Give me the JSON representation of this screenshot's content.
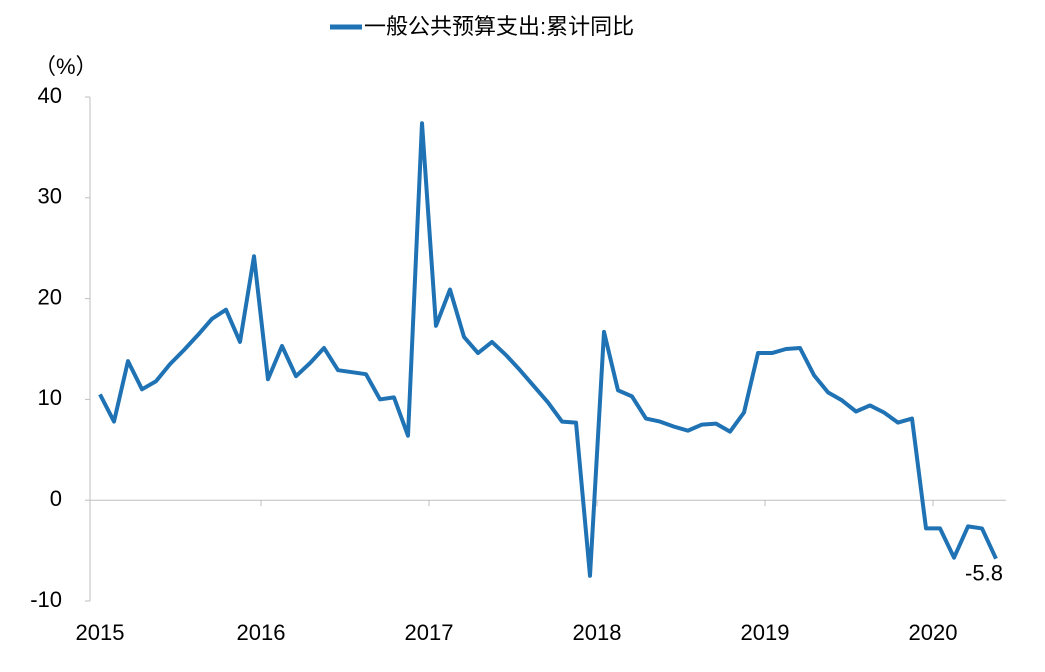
{
  "chart_data": {
    "type": "line",
    "legend": "一般公共预算支出:累计同比",
    "y_unit": "（%）",
    "categories": [
      "2015",
      null,
      null,
      null,
      null,
      null,
      null,
      null,
      null,
      null,
      null,
      null,
      "2016",
      null,
      null,
      null,
      null,
      null,
      null,
      null,
      null,
      null,
      null,
      null,
      "2017",
      null,
      null,
      null,
      null,
      null,
      null,
      null,
      null,
      null,
      null,
      null,
      "2018",
      null,
      null,
      null,
      null,
      null,
      null,
      null,
      null,
      null,
      null,
      null,
      "2019",
      null,
      null,
      null,
      null,
      null,
      null,
      null,
      null,
      null,
      null,
      null,
      "2020",
      null,
      null,
      null,
      null
    ],
    "series": [
      {
        "name": "一般公共预算支出:累计同比",
        "color": "#1f72b4",
        "values": [
          10.5,
          7.8,
          13.8,
          11.0,
          11.8,
          13.5,
          14.9,
          16.4,
          18.0,
          18.9,
          15.7,
          24.2,
          12.0,
          15.3,
          12.3,
          13.6,
          15.1,
          12.9,
          12.7,
          12.5,
          10.0,
          10.2,
          6.4,
          37.4,
          17.3,
          20.9,
          16.2,
          14.6,
          15.7,
          14.4,
          12.9,
          11.3,
          9.7,
          7.8,
          7.7,
          -7.5,
          16.7,
          10.9,
          10.3,
          8.1,
          7.8,
          7.3,
          6.9,
          7.5,
          7.6,
          6.8,
          8.7,
          14.6,
          14.6,
          15.0,
          15.1,
          12.4,
          10.7,
          9.9,
          8.8,
          9.4,
          8.7,
          7.7,
          8.1,
          -2.8,
          -2.8,
          -5.7,
          -2.6,
          -2.8,
          -5.8
        ]
      }
    ],
    "ylim": [
      -10,
      40
    ],
    "yticks": [
      -10,
      0,
      10,
      20,
      30,
      40
    ]
  }
}
